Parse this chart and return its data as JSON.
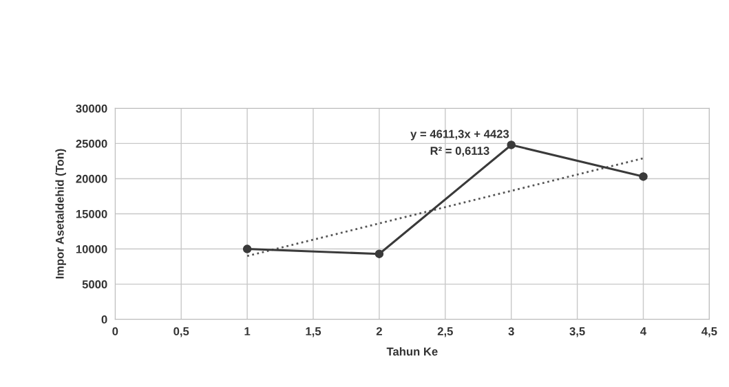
{
  "chart_data": {
    "type": "line",
    "xlabel": "Tahun Ke",
    "ylabel": "Impor Asetaldehid (Ton)",
    "xlim": [
      0,
      4.5
    ],
    "xticks": [
      0,
      {
        "value": 0.5,
        "label": "0,5"
      },
      1,
      {
        "value": 1.5,
        "label": "1,5"
      },
      2,
      {
        "value": 2.5,
        "label": "2,5"
      },
      3,
      {
        "value": 3.5,
        "label": "3,5"
      },
      4,
      {
        "value": 4.5,
        "label": "4,5"
      }
    ],
    "ylim": [
      0,
      30000
    ],
    "yticks": [
      0,
      5000,
      10000,
      15000,
      20000,
      25000,
      30000
    ],
    "grid": true,
    "marker": "circle",
    "line_style": "solid",
    "series": [
      {
        "color": "#3a3a3a",
        "x": [
          1,
          2,
          3,
          4
        ],
        "values": [
          10000,
          9300,
          24800,
          20300
        ]
      },
      {
        "type": "line",
        "color": "#555555",
        "line_style": "dotted",
        "marker": "none",
        "x": [
          1,
          4
        ],
        "values": [
          9000,
          22900
        ]
      }
    ],
    "annotations": [
      "y = 4611,3x + 4423",
      "R² = 0,6113"
    ]
  }
}
